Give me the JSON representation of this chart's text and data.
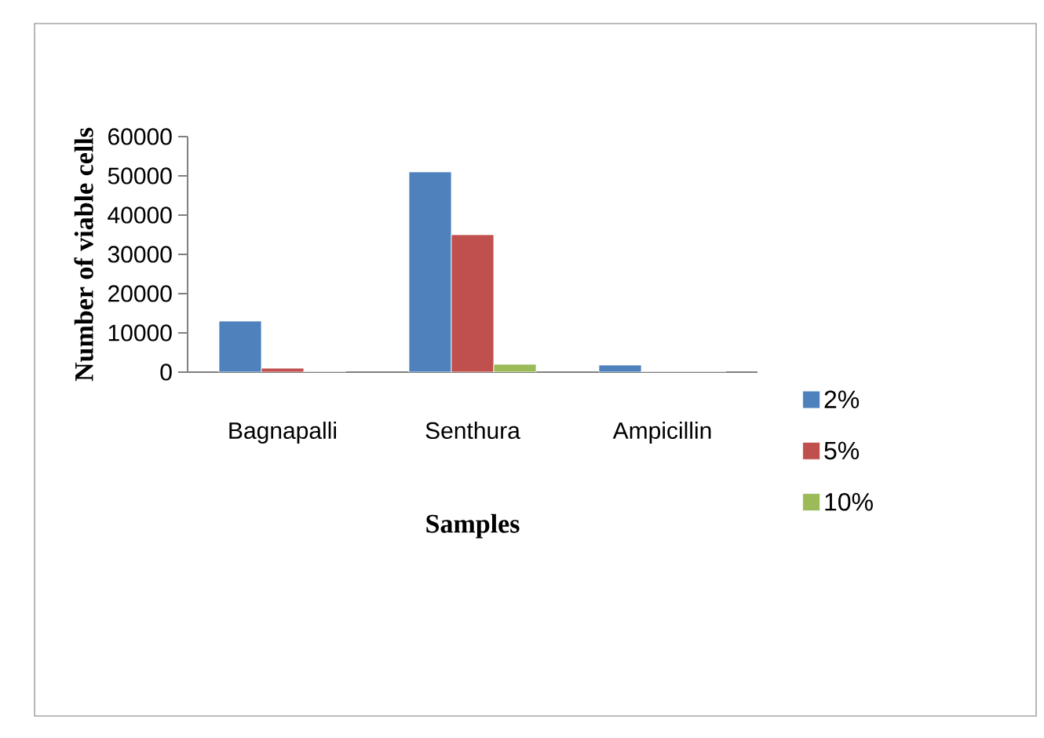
{
  "chart_data": {
    "type": "bar",
    "xlabel": "Samples",
    "ylabel": "Number of viable cells",
    "categories": [
      "Bagnapalli",
      "Senthura",
      "Ampicillin"
    ],
    "series": [
      {
        "name": "2%",
        "color": "#4f81bd",
        "values": [
          13000,
          51000,
          1800
        ]
      },
      {
        "name": "5%",
        "color": "#c0504d",
        "values": [
          1000,
          35000,
          0
        ]
      },
      {
        "name": "10%",
        "color": "#9bbb59",
        "values": [
          0,
          2000,
          0
        ]
      }
    ],
    "ylim": [
      0,
      60000
    ],
    "yticks": [
      0,
      10000,
      20000,
      30000,
      40000,
      50000,
      60000
    ],
    "legend": "right"
  }
}
